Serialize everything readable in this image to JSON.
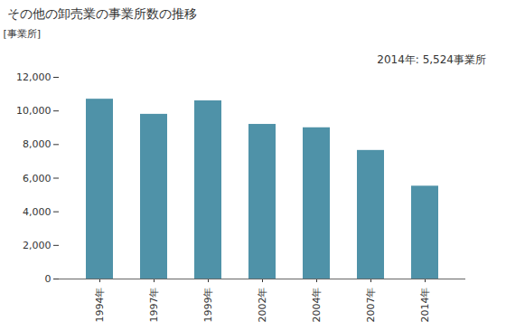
{
  "chart_data": {
    "type": "bar",
    "title": "その他の卸売業の事業所数の推移",
    "y_label": "[事業所]",
    "annotation": "2014年: 5,524事業所",
    "categories": [
      "1994年",
      "1997年",
      "1999年",
      "2002年",
      "2004年",
      "2007年",
      "2014年"
    ],
    "values": [
      10700,
      9800,
      10600,
      9200,
      9000,
      7650,
      5524
    ],
    "color": "#4f92a8",
    "ylim": [
      0,
      12000
    ],
    "yticks": [
      0,
      {
        "value": 2000,
        "label": "2,000"
      },
      {
        "value": 4000,
        "label": "4,000"
      },
      {
        "value": 6000,
        "label": "6,000"
      },
      {
        "value": 8000,
        "label": "8,000"
      },
      {
        "value": 10000,
        "label": "10,000"
      },
      {
        "value": 12000,
        "label": "12,000"
      }
    ],
    "grid": false
  }
}
